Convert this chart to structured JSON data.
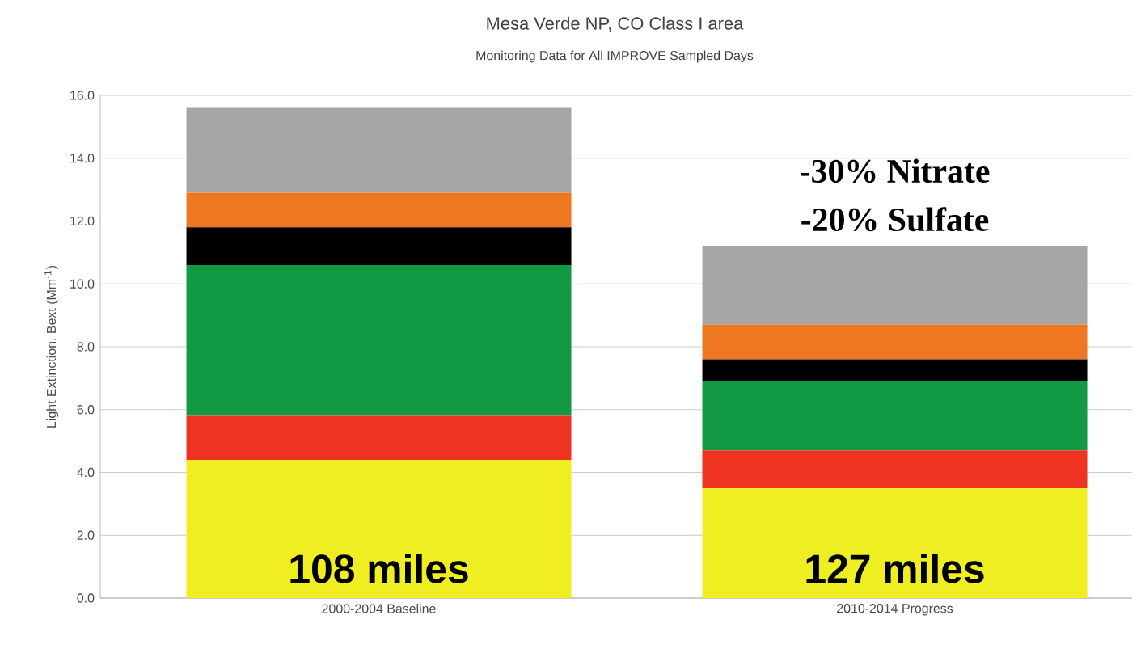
{
  "chart_data": {
    "type": "bar",
    "stacked": true,
    "title": "Mesa Verde NP, CO Class I area",
    "subtitle": "Monitoring Data for All IMPROVE Sampled Days",
    "ylabel": "Light Extinction, Bext (Mm$^{-1}$)",
    "categories": [
      "2000-2004 Baseline",
      "2010-2014 Progress"
    ],
    "series": [
      {
        "color": "#eeee22",
        "values": [
          4.4,
          3.5
        ]
      },
      {
        "color": "#ee3322",
        "values": [
          1.4,
          1.2
        ]
      },
      {
        "color": "#119944",
        "values": [
          4.8,
          2.2
        ]
      },
      {
        "color": "#000000",
        "values": [
          1.2,
          0.7
        ]
      },
      {
        "color": "#ee7722",
        "values": [
          1.1,
          1.1
        ]
      },
      {
        "color": "#a6a6a6",
        "values": [
          2.7,
          2.5
        ]
      }
    ],
    "ylim": [
      0,
      16
    ],
    "yticks": [
      {
        "value": 0,
        "label": "0.0"
      },
      {
        "value": 2,
        "label": "2.0"
      },
      {
        "value": 4,
        "label": "4.0"
      },
      {
        "value": 6,
        "label": "6.0"
      },
      {
        "value": 8,
        "label": "8.0"
      },
      {
        "value": 10,
        "label": "10.0"
      },
      {
        "value": 12,
        "label": "12.0"
      },
      {
        "value": 14,
        "label": "14.0"
      },
      {
        "value": 16,
        "label": "16.0"
      }
    ],
    "grid": "y",
    "annotations": [
      "-30% Nitrate",
      "-20% Sulfate",
      "108 miles",
      "127 miles"
    ]
  }
}
